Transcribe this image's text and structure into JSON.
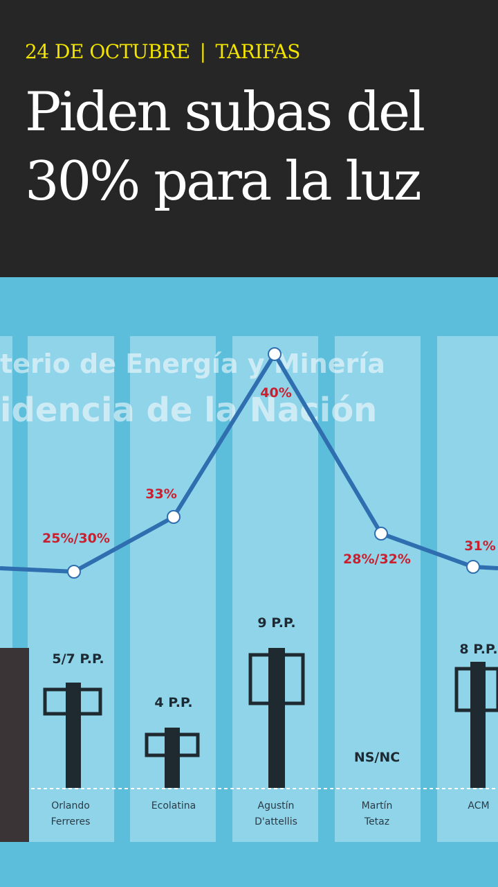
{
  "header": {
    "date": "24 DE OCTUBRE",
    "section": "TARIFAS",
    "title_lines": [
      "Piden subas del",
      "30% para la luz"
    ]
  },
  "infographic": {
    "watermark": [
      "terio de Energía y Minería",
      "idencia de la Nación"
    ],
    "increase_labels": [
      "25%/30%",
      "33%",
      "40%",
      "28%/32%",
      "31%"
    ],
    "points_labels": [
      "5/7 P.P.",
      "4 P.P.",
      "9 P.P.",
      "NS/NC",
      "8 P.P."
    ],
    "names": [
      [
        "Orlando",
        "Ferreres"
      ],
      [
        "Ecolatina"
      ],
      [
        "Agustín",
        "D'attellis"
      ],
      [
        "Martín",
        "Tetaz"
      ],
      [
        "ACM"
      ]
    ]
  }
}
